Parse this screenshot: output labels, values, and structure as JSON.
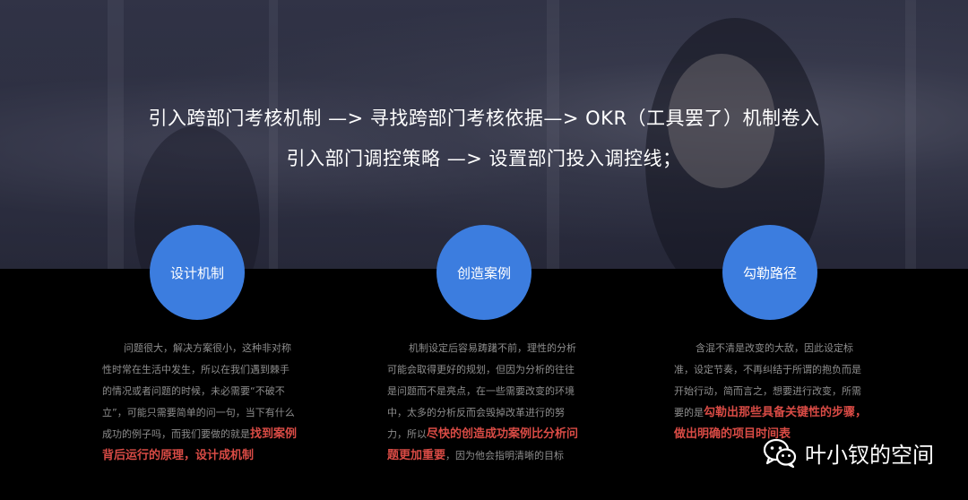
{
  "headline": {
    "line1": "引入跨部门考核机制 —> 寻找跨部门考核依据—> OKR（工具罢了）机制卷入",
    "line2": "引入部门调控策略 —> 设置部门投入调控线；"
  },
  "columns": [
    {
      "title": "设计机制",
      "text_before": "问题很大，解决方案很小，这种非对称性时常在生活中发生，所以在我们遇到棘手的情况或者问题的时候，未必需要“不破不立”，可能只需要简单的问一句，当下有什么成功的例子吗，而我们要做的就是",
      "highlight": "找到案例背后运行的原理，设计成机制",
      "text_after": ""
    },
    {
      "title": "创造案例",
      "text_before": "机制设定后容易踌躇不前，理性的分析可能会取得更好的规划，但因为分析的往往是问题而不是亮点，在一些需要改变的环境中，太多的分析反而会毁掉改革进行的努力，所以",
      "highlight": "尽快的创造成功案例比分析问题更加重要",
      "text_after": "，因为他会指明清晰的目标"
    },
    {
      "title": "勾勒路径",
      "text_before": "含混不清是改变的大敌，因此设定标准，设定节奏，不再纠结于所谓的抱负而是开始行动，简而言之，想要进行改变，所需要的是",
      "highlight": "勾勒出那些具备关键性的步骤，做出明确的项目时间表",
      "text_after": ""
    }
  ],
  "watermark": {
    "text": "叶小钗的空间",
    "icon": "wechat-icon"
  },
  "colors": {
    "accent": "#3c7ddf",
    "highlight": "#d94b45",
    "body_text": "#8d8d8d"
  }
}
